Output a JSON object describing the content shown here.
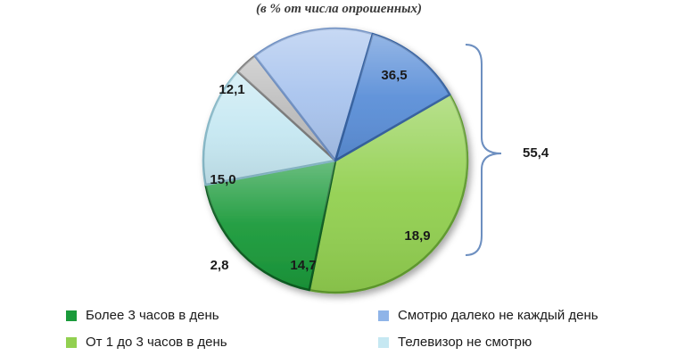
{
  "chart_data": {
    "type": "pie",
    "subtitle": "(в % от числа опрошенных)",
    "slices": [
      {
        "label": "От 1 до 3 часов в день",
        "value": 36.5,
        "display": "36,5",
        "color": "#92d050",
        "dark": "#5f9a2e"
      },
      {
        "label": "Более 3 часов в день",
        "value": 18.9,
        "display": "18,9",
        "color": "#1a9a3a",
        "dark": "#0d5c20"
      },
      {
        "label": "Телевизор не смотрю",
        "value": 14.7,
        "display": "14,7",
        "color": "#c6e8f2",
        "dark": "#86b7c6"
      },
      {
        "label": "",
        "value": 2.8,
        "display": "2,8",
        "color": "#bdbdbd",
        "dark": "#7a7a7a"
      },
      {
        "label": "",
        "value": 15.0,
        "display": "15,0",
        "color": "#a9c4ee",
        "dark": "#6e8fc2"
      },
      {
        "label": "Смотрю далеко не каждый день",
        "value": 12.1,
        "display": "12,1",
        "color": "#5b8fd8",
        "dark": "#34609f"
      }
    ],
    "bracket": {
      "value": 55.4,
      "display": "55,4"
    },
    "legend": [
      {
        "label": "Более 3 часов в день",
        "color": "#1a9a3a"
      },
      {
        "label": "Смотрю далеко не каждый день",
        "color": "#8fb4e8"
      },
      {
        "label": "От 1 до 3 часов в день",
        "color": "#92d050"
      },
      {
        "label": "Телевизор не смотрю",
        "color": "#c6e8f2"
      }
    ]
  }
}
